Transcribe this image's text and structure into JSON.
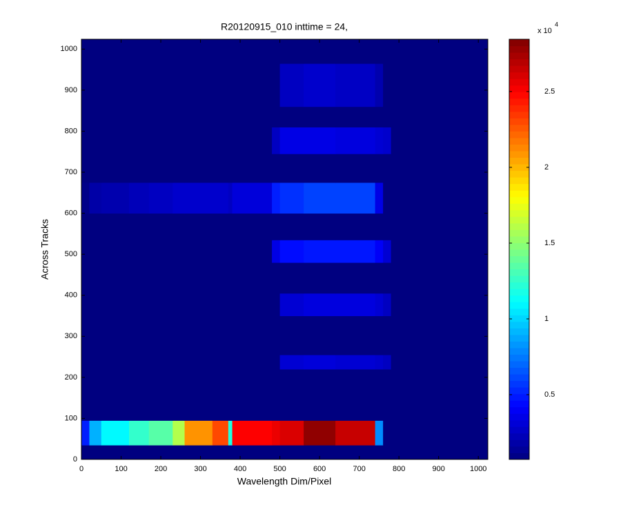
{
  "chart_data": {
    "type": "heatmap",
    "title": "R20120915_010 inttime = 24,",
    "xlabel": "Wavelength Dim/Pixel",
    "ylabel": "Across Tracks",
    "x_edges": [
      0,
      20,
      50,
      120,
      170,
      230,
      260,
      330,
      370,
      380,
      480,
      500,
      560,
      640,
      740,
      760,
      780,
      1024
    ],
    "y_edges": [
      0,
      35,
      95,
      220,
      255,
      350,
      405,
      480,
      535,
      600,
      675,
      745,
      810,
      860,
      965,
      1024
    ],
    "values": [
      [
        700,
        700,
        700,
        700,
        700,
        700,
        700,
        700,
        700,
        700,
        700,
        700,
        700,
        700,
        700,
        700,
        700
      ],
      [
        5000,
        9000,
        11000,
        12500,
        13500,
        16000,
        21000,
        23000,
        12000,
        25000,
        25500,
        26000,
        28000,
        26500,
        8000,
        700,
        700
      ],
      [
        700,
        700,
        700,
        700,
        700,
        700,
        700,
        700,
        700,
        700,
        700,
        700,
        700,
        700,
        700,
        700,
        700
      ],
      [
        700,
        700,
        700,
        700,
        700,
        700,
        700,
        700,
        700,
        700,
        700,
        3000,
        3200,
        3000,
        2800,
        2500,
        700
      ],
      [
        700,
        700,
        700,
        700,
        700,
        700,
        700,
        700,
        700,
        700,
        700,
        700,
        700,
        700,
        700,
        700,
        700
      ],
      [
        700,
        700,
        700,
        700,
        700,
        700,
        700,
        700,
        700,
        700,
        700,
        3000,
        3300,
        3300,
        3000,
        2500,
        700
      ],
      [
        700,
        700,
        700,
        700,
        700,
        700,
        700,
        700,
        700,
        700,
        700,
        700,
        700,
        700,
        700,
        700,
        700
      ],
      [
        700,
        700,
        700,
        700,
        700,
        700,
        700,
        700,
        700,
        700,
        3500,
        4500,
        4800,
        4800,
        4000,
        3000,
        700
      ],
      [
        700,
        700,
        700,
        700,
        700,
        700,
        700,
        700,
        700,
        700,
        700,
        700,
        700,
        700,
        700,
        700,
        700
      ],
      [
        1000,
        1800,
        2000,
        2300,
        2500,
        2800,
        2800,
        2800,
        2500,
        3200,
        5000,
        5500,
        6000,
        6000,
        3500,
        700,
        700
      ],
      [
        700,
        700,
        700,
        700,
        700,
        700,
        700,
        700,
        700,
        700,
        700,
        700,
        700,
        700,
        700,
        700,
        700
      ],
      [
        700,
        700,
        700,
        700,
        700,
        700,
        700,
        700,
        700,
        700,
        2500,
        3500,
        3500,
        3300,
        3000,
        2800,
        700
      ],
      [
        700,
        700,
        700,
        700,
        700,
        700,
        700,
        700,
        700,
        700,
        700,
        700,
        700,
        700,
        700,
        700,
        700
      ],
      [
        700,
        700,
        700,
        700,
        700,
        700,
        700,
        700,
        700,
        700,
        700,
        2500,
        2800,
        2600,
        2000,
        700,
        700
      ],
      [
        700,
        700,
        700,
        700,
        700,
        700,
        700,
        700,
        700,
        700,
        700,
        700,
        700,
        700,
        700,
        700,
        700
      ]
    ],
    "xlim": [
      0,
      1024
    ],
    "ylim": [
      0,
      1024
    ],
    "xticks": [
      0,
      100,
      200,
      300,
      400,
      500,
      600,
      700,
      800,
      900,
      1000
    ],
    "yticks": [
      0,
      100,
      200,
      300,
      400,
      500,
      600,
      700,
      800,
      900,
      1000
    ],
    "colormap": "jet",
    "clim": [
      730,
      28450
    ],
    "cticks": [
      {
        "value": 5000,
        "label": "0.5"
      },
      {
        "value": 10000,
        "label": "1"
      },
      {
        "value": 15000,
        "label": "1.5"
      },
      {
        "value": 20000,
        "label": "2"
      },
      {
        "value": 25000,
        "label": "2.5"
      }
    ],
    "colorbar_scale": {
      "base": "x 10",
      "exponent": "4"
    }
  }
}
